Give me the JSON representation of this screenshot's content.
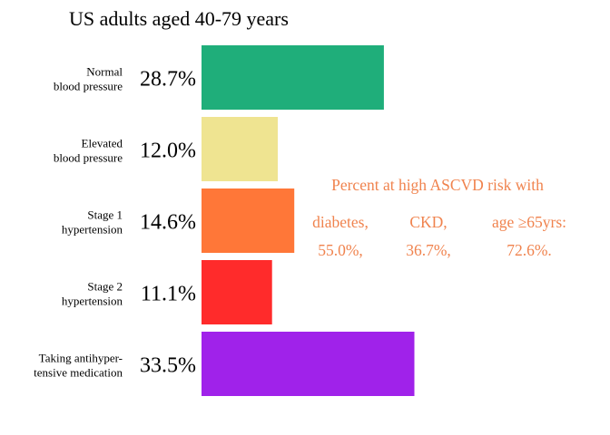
{
  "chart_data": {
    "type": "bar",
    "orientation": "horizontal",
    "title": "US adults aged 40-79 years",
    "categories": [
      [
        "Normal",
        "blood pressure"
      ],
      [
        "Elevated",
        "blood pressure"
      ],
      [
        "Stage 1",
        "hypertension"
      ],
      [
        "Stage 2",
        "hypertension"
      ],
      [
        "Taking antihyper-",
        "tensive medication"
      ]
    ],
    "values": [
      28.7,
      12.0,
      14.6,
      11.1,
      33.5
    ],
    "value_labels": [
      "28.7%",
      "12.0%",
      "14.6%",
      "11.1%",
      "33.5%"
    ],
    "colors": [
      "#1fae7a",
      "#efe491",
      "#ff7738",
      "#ff2b2b",
      "#a022ea"
    ],
    "xlabel": "",
    "ylabel": "",
    "grid": false,
    "annotation": {
      "color": "#f0834e",
      "heading": "Percent at high ASCVD risk with",
      "items": [
        {
          "label": "diabetes,",
          "value": "55.0%,"
        },
        {
          "label": "CKD,",
          "value": "36.7%,"
        },
        {
          "label": "age ≥65yrs:",
          "value": "72.6%."
        }
      ]
    }
  }
}
